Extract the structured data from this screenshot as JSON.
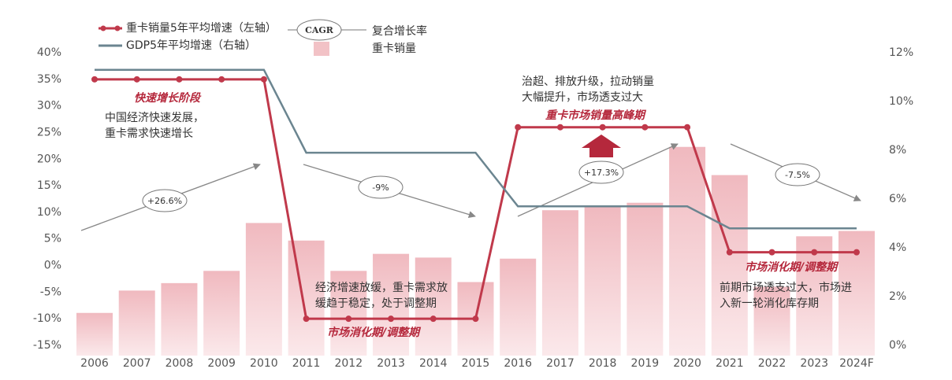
{
  "chart_data": {
    "type": "bar-line",
    "categories": [
      "2006",
      "2007",
      "2008",
      "2009",
      "2010",
      "2011",
      "2012",
      "2013",
      "2014",
      "2015",
      "2016",
      "2017",
      "2018",
      "2019",
      "2020",
      "2021",
      "2022",
      "2023",
      "2024F"
    ],
    "series": [
      {
        "name": "重卡销量",
        "type": "bar",
        "color": "#f2c2c6",
        "values": [
          -8.9,
          -4.7,
          -3.3,
          -1.0,
          8.0,
          4.7,
          -1.0,
          2.2,
          1.5,
          -3.1,
          1.3,
          10.4,
          11.1,
          11.8,
          22.3,
          17.0,
          -4.0,
          5.5,
          6.5
        ]
      },
      {
        "name": "重卡销量5年平均增速（左轴）",
        "type": "line",
        "color": "#c0394b",
        "values": [
          35,
          35,
          35,
          35,
          35,
          -10,
          -10,
          -10,
          -10,
          -10,
          26,
          26,
          26,
          26,
          26,
          2.5,
          2.5,
          2.5,
          2.5
        ]
      },
      {
        "name": "GDP5年平均增速（右轴）",
        "type": "line",
        "axis": "y2",
        "color": "#6b8590",
        "values": [
          11.3,
          11.3,
          11.3,
          11.3,
          11.3,
          7.9,
          7.9,
          7.9,
          7.9,
          7.9,
          5.7,
          5.7,
          5.7,
          5.7,
          5.7,
          4.8,
          4.8,
          4.8,
          4.8
        ]
      }
    ],
    "ylim": [
      -15,
      40
    ],
    "yticks": [
      {
        "value": -15,
        "label": "-15%"
      },
      {
        "value": -10,
        "label": "-10%"
      },
      {
        "value": -5,
        "label": "-5%"
      },
      {
        "value": 0,
        "label": "0%"
      },
      {
        "value": 5,
        "label": "5%"
      },
      {
        "value": 10,
        "label": "10%"
      },
      {
        "value": 15,
        "label": "15%"
      },
      {
        "value": 20,
        "label": "20%"
      },
      {
        "value": 25,
        "label": "25%"
      },
      {
        "value": 30,
        "label": "30%"
      },
      {
        "value": 35,
        "label": "35%"
      },
      {
        "value": 40,
        "label": "40%"
      }
    ],
    "y2lim": [
      0,
      12
    ],
    "y2ticks": [
      {
        "value": 0,
        "label": "0%"
      },
      {
        "value": 2,
        "label": "2%"
      },
      {
        "value": 4,
        "label": "4%"
      },
      {
        "value": 6,
        "label": "6%"
      },
      {
        "value": 8,
        "label": "8%"
      },
      {
        "value": 10,
        "label": "10%"
      },
      {
        "value": 12,
        "label": "12%"
      }
    ],
    "cagr_legend": {
      "badge": "CAGR",
      "label": "复合增长率"
    },
    "cagr_labels": [
      "+26.6%",
      "-9%",
      "+17.3%",
      "-7.5%"
    ],
    "annotations": [
      [
        "快速增长阶段"
      ],
      [
        "中国经济快速发展，",
        "重卡需求快速增长"
      ],
      [
        "经济增速放缓，重卡需求放",
        "缓趋于稳定，处于调整期"
      ],
      [
        "市场消化期/调整期"
      ],
      [
        "治超、排放升级，拉动销量",
        "大幅提升，市场透支过大"
      ],
      [
        "重卡市场销量高峰期"
      ],
      [
        "市场消化期/调整期"
      ],
      [
        "前期市场透支过大，市场进",
        "入新一轮消化库存期"
      ]
    ]
  }
}
